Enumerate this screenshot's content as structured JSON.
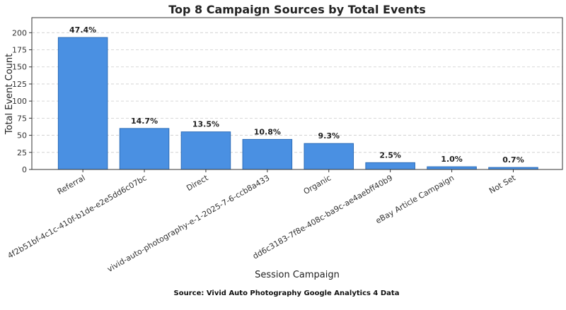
{
  "chart_data": {
    "type": "bar",
    "title": "Top 8 Campaign Sources by Total Events",
    "xlabel": "Session Campaign",
    "ylabel": "Total Event Count",
    "categories": [
      "Referral",
      "4f2b51bf-4c1c-410f-b1de-e2e5dd6c07bc",
      "Direct",
      "vivid-auto-photography-e-1-2025-7-6-ccb8a433",
      "Organic",
      "dd6c3183-7f8e-408c-ba9c-ae4aebff40b9",
      "eBay Article Campaign",
      "Not Set"
    ],
    "values": [
      193,
      60,
      55,
      44,
      38,
      10,
      4,
      3
    ],
    "data_labels": [
      "47.4%",
      "14.7%",
      "13.5%",
      "10.8%",
      "9.3%",
      "2.5%",
      "1.0%",
      "0.7%"
    ],
    "ylim": [
      0,
      222
    ],
    "yticks": [
      0,
      25,
      50,
      75,
      100,
      125,
      150,
      175,
      200
    ],
    "grid": "y-dashed",
    "bar_color": "#4a90e2",
    "bar_edge_color": "#2b6cb8"
  },
  "caption": "Source: Vivid Auto Photography Google Analytics 4 Data"
}
